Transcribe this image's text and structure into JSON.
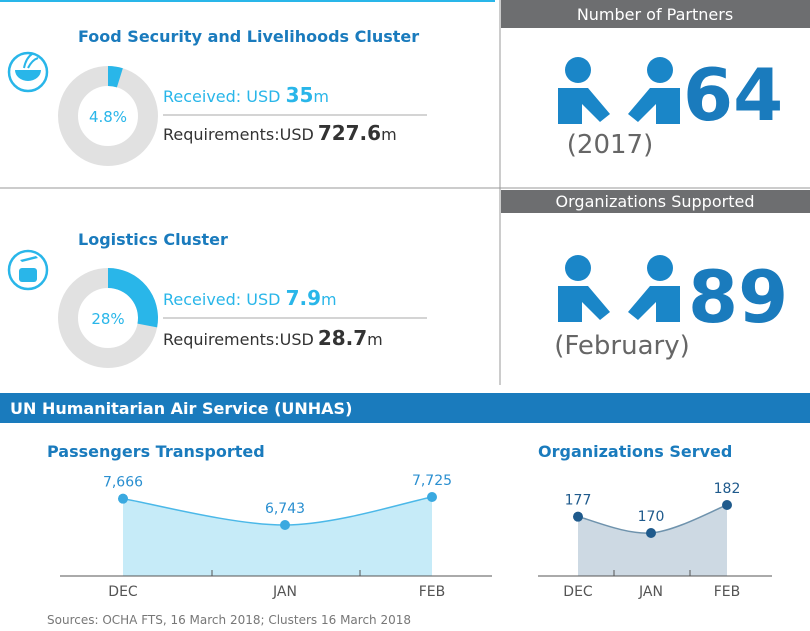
{
  "food": {
    "title": "Food Security and Livelihoods Cluster",
    "share": 4.8,
    "share_label": "4.8%",
    "received_label": "Received: USD",
    "received": 35,
    "required_label": "Requirements:USD",
    "required": 727.6,
    "unit": "m"
  },
  "logistics": {
    "title": "Logistics Cluster",
    "share": 28,
    "share_label": "28%",
    "received_label": "Received: USD",
    "received": 7.9,
    "required_label": "Requirements:USD",
    "required": 28.7,
    "unit": "m"
  },
  "partners": {
    "header": "Number of Partners",
    "value": 64,
    "note": "(2017)"
  },
  "organizations": {
    "header": "Organizations Supported",
    "value": 89,
    "note": "(February)"
  },
  "unhas": {
    "title": "UN Humanitarian Air Service (UNHAS)",
    "passengers": {
      "type": "line",
      "title": "Passengers Transported",
      "categories": [
        "DEC",
        "JAN",
        "FEB"
      ],
      "values": [
        7666,
        6743,
        7725
      ],
      "value_labels": [
        "7,666",
        "6,743",
        "7,725"
      ]
    },
    "served": {
      "type": "line",
      "title": "Organizations Served",
      "categories": [
        "DEC",
        "JAN",
        "FEB"
      ],
      "values": [
        177,
        170,
        182
      ]
    }
  },
  "sources": "Sources: OCHA FTS, 16 March 2018; Clusters 16 March 2018"
}
